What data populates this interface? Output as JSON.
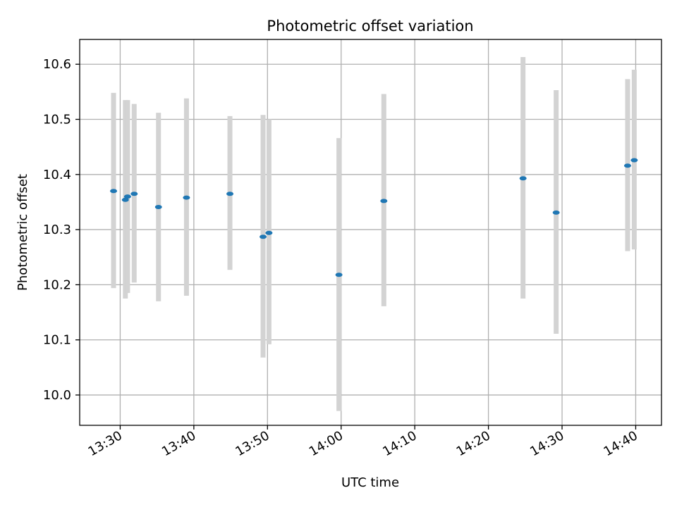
{
  "chart_data": {
    "type": "scatter",
    "title": "Photometric offset variation",
    "xlabel": "UTC time",
    "ylabel": "Photometric offset",
    "grid": true,
    "x_axis_type": "time",
    "xlim": [
      "13:24:30",
      "14:43:30"
    ],
    "ylim": [
      9.945,
      10.645
    ],
    "x_ticks": [
      "13:30",
      "13:40",
      "13:50",
      "14:00",
      "14:10",
      "14:20",
      "14:30",
      "14:40"
    ],
    "y_ticks": [
      "10.0",
      "10.1",
      "10.2",
      "10.3",
      "10.4",
      "10.5",
      "10.6"
    ],
    "colors": {
      "points": "#1f77b4",
      "errorbars": "#d3d3d3",
      "grid": "#b0b0b0"
    },
    "series": [
      {
        "points": [
          {
            "x": "13:29:06",
            "y": 10.37,
            "err_low": 10.194,
            "err_high": 10.548
          },
          {
            "x": "13:30:42",
            "y": 10.354,
            "err_low": 10.175,
            "err_high": 10.535
          },
          {
            "x": "13:31:00",
            "y": 10.36,
            "err_low": 10.185,
            "err_high": 10.535
          },
          {
            "x": "13:31:54",
            "y": 10.365,
            "err_low": 10.204,
            "err_high": 10.528
          },
          {
            "x": "13:35:12",
            "y": 10.341,
            "err_low": 10.17,
            "err_high": 10.512
          },
          {
            "x": "13:39:00",
            "y": 10.358,
            "err_low": 10.18,
            "err_high": 10.538
          },
          {
            "x": "13:44:54",
            "y": 10.365,
            "err_low": 10.227,
            "err_high": 10.506
          },
          {
            "x": "13:49:24",
            "y": 10.287,
            "err_low": 10.068,
            "err_high": 10.508
          },
          {
            "x": "13:50:12",
            "y": 10.294,
            "err_low": 10.092,
            "err_high": 10.5
          },
          {
            "x": "13:59:42",
            "y": 10.218,
            "err_low": 9.971,
            "err_high": 10.466
          },
          {
            "x": "14:05:48",
            "y": 10.352,
            "err_low": 10.161,
            "err_high": 10.546
          },
          {
            "x": "14:24:42",
            "y": 10.393,
            "err_low": 10.175,
            "err_high": 10.613
          },
          {
            "x": "14:29:12",
            "y": 10.331,
            "err_low": 10.111,
            "err_high": 10.553
          },
          {
            "x": "14:38:54",
            "y": 10.416,
            "err_low": 10.261,
            "err_high": 10.573
          },
          {
            "x": "14:39:48",
            "y": 10.426,
            "err_low": 10.264,
            "err_high": 10.59
          }
        ]
      }
    ]
  }
}
